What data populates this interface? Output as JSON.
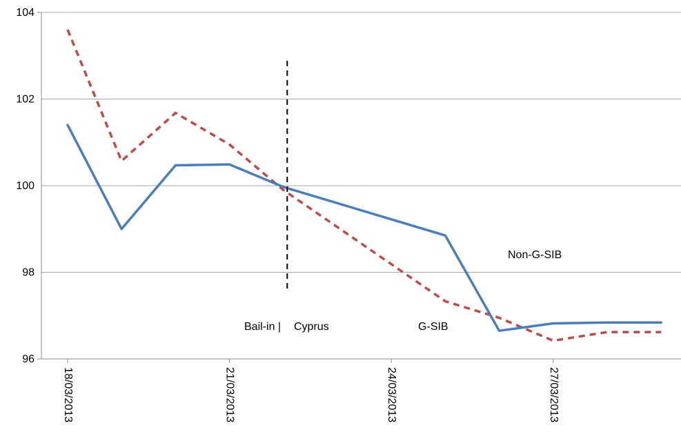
{
  "chart_data": {
    "type": "line",
    "x": [
      "18/03/2013",
      "19/03/2013",
      "20/03/2013",
      "21/03/2013",
      "22/03/2013",
      "25/03/2013",
      "26/03/2013",
      "27/03/2013",
      "28/03/2013",
      "29/03/2013"
    ],
    "x_tick_labels": [
      "18/03/2013",
      "21/03/2013",
      "24/03/2013",
      "27/03/2013"
    ],
    "ylim": [
      96,
      104
    ],
    "y_ticks": [
      96,
      98,
      100,
      102,
      104
    ],
    "grid": true,
    "series": [
      {
        "name": "Non-G-SIB",
        "color": "#4a7ebb",
        "style": "solid",
        "values": [
          101.4,
          99.0,
          100.47,
          100.49,
          99.97,
          98.85,
          96.65,
          96.82,
          96.84,
          96.84
        ]
      },
      {
        "name": "G-SIB",
        "color": "#be4b48",
        "style": "dashed",
        "values": [
          103.6,
          100.57,
          101.68,
          100.95,
          99.9,
          97.33,
          96.95,
          96.42,
          96.62,
          96.62
        ]
      }
    ],
    "annotations": {
      "event_line_value": 98.2,
      "event_left": "Bail-in |",
      "event_right": "Cyprus"
    }
  }
}
